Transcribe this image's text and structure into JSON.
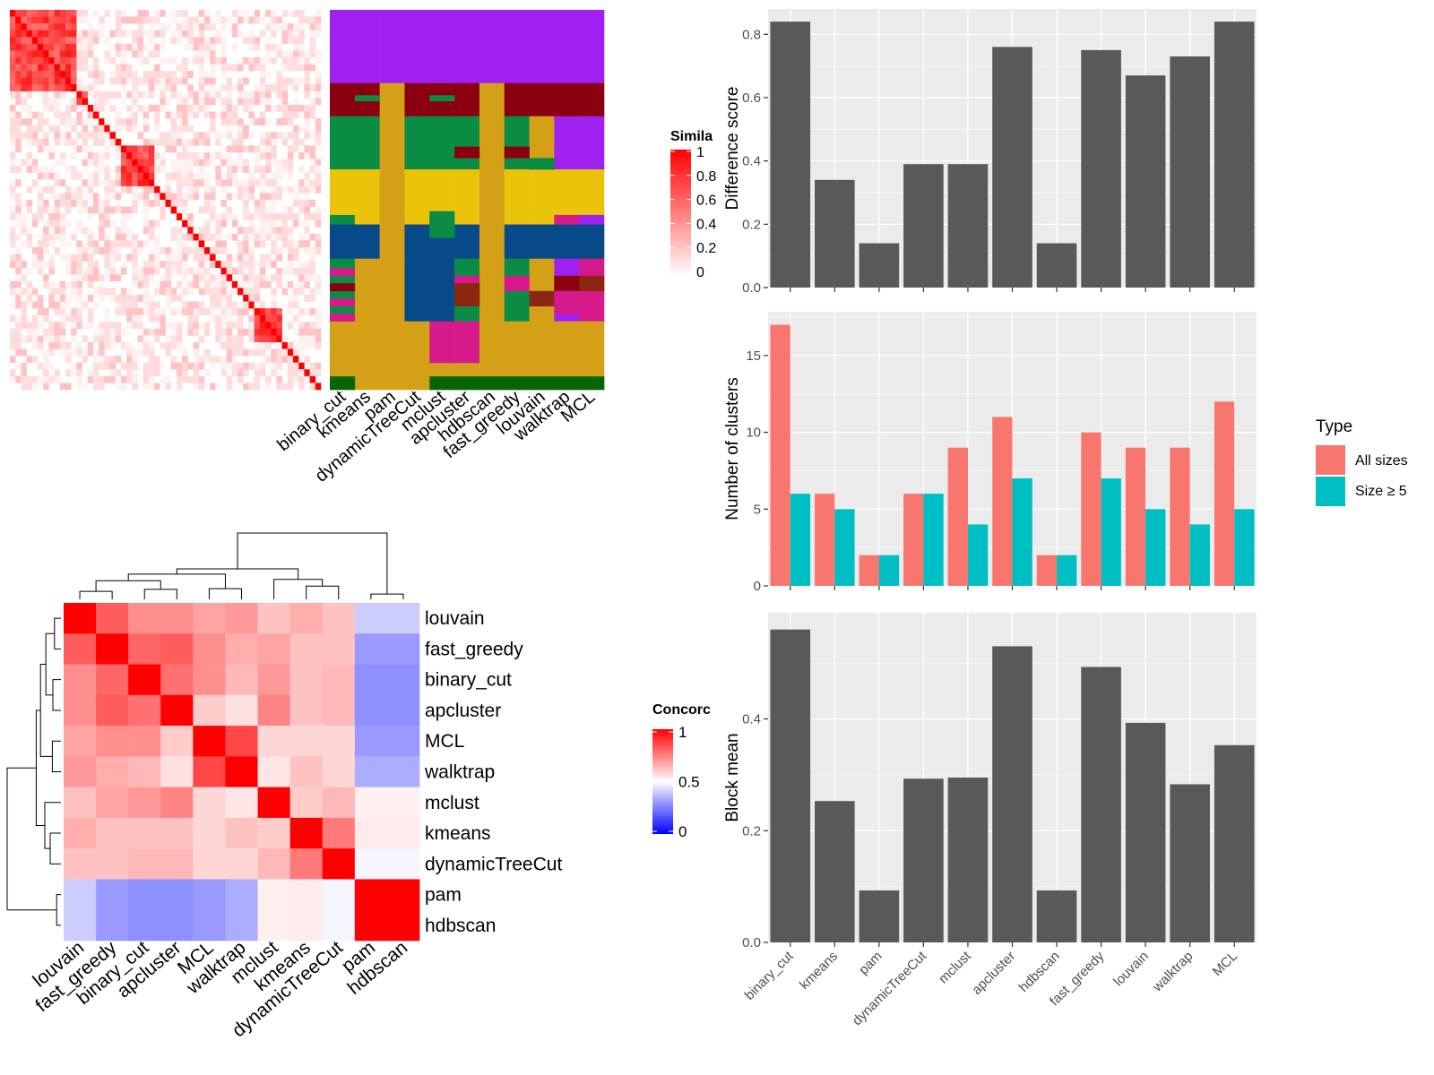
{
  "methods": [
    "binary_cut",
    "kmeans",
    "pam",
    "dynamicTreeCut",
    "mclust",
    "apcluster",
    "hdbscan",
    "fast_greedy",
    "louvain",
    "walktrap",
    "MCL"
  ],
  "colors": {
    "panel_bg": "#EBEBEB",
    "grid": "#FFFFFF",
    "bar": "#595959",
    "all_sizes": "#F8766D",
    "size_ge5": "#00BFC4",
    "sim_high": "#FF0000",
    "sim_low": "#FFFFFF",
    "conc_high": "#FF0000",
    "conc_mid": "#FFFFFF",
    "conc_low": "#0000FF"
  },
  "similarity_legend": {
    "title": "Simila",
    "ticks": [
      "1",
      "0.8",
      "0.6",
      "0.4",
      "0.2",
      "0"
    ]
  },
  "concordance_legend": {
    "title": "Concorc",
    "ticks": [
      "1",
      "0.5",
      "0"
    ]
  },
  "class_columns": [
    "binary_cut",
    "kmeans",
    "pam",
    "dynamicTreeCut",
    "mclust",
    "apcluster",
    "hdbscan",
    "fast_greedy",
    "louvain",
    "walktrap",
    "MCL"
  ],
  "class_palette": [
    "#A020F0",
    "#8B0010",
    "#0B8C45",
    "#EBC30B",
    "#064A8A",
    "#D4A017",
    "#D61A8C",
    "#8B2610",
    "#066606"
  ],
  "concordance_order": [
    "louvain",
    "fast_greedy",
    "binary_cut",
    "apcluster",
    "MCL",
    "walktrap",
    "mclust",
    "kmeans",
    "dynamicTreeCut",
    "pam",
    "hdbscan"
  ],
  "concordance_matrix": [
    [
      1.0,
      0.82,
      0.72,
      0.72,
      0.68,
      0.7,
      0.62,
      0.66,
      0.62,
      0.4,
      0.4
    ],
    [
      0.82,
      1.0,
      0.8,
      0.82,
      0.72,
      0.66,
      0.68,
      0.62,
      0.62,
      0.3,
      0.3
    ],
    [
      0.72,
      0.8,
      1.0,
      0.78,
      0.72,
      0.64,
      0.7,
      0.62,
      0.64,
      0.28,
      0.28
    ],
    [
      0.72,
      0.82,
      0.78,
      1.0,
      0.6,
      0.56,
      0.74,
      0.62,
      0.64,
      0.28,
      0.28
    ],
    [
      0.68,
      0.72,
      0.72,
      0.6,
      1.0,
      0.86,
      0.58,
      0.58,
      0.58,
      0.3,
      0.3
    ],
    [
      0.7,
      0.66,
      0.64,
      0.56,
      0.86,
      1.0,
      0.55,
      0.62,
      0.58,
      0.34,
      0.34
    ],
    [
      0.62,
      0.68,
      0.7,
      0.74,
      0.58,
      0.55,
      1.0,
      0.6,
      0.64,
      0.53,
      0.53
    ],
    [
      0.66,
      0.62,
      0.62,
      0.62,
      0.58,
      0.62,
      0.6,
      1.0,
      0.76,
      0.54,
      0.54
    ],
    [
      0.62,
      0.62,
      0.64,
      0.64,
      0.58,
      0.58,
      0.64,
      0.76,
      1.0,
      0.48,
      0.48
    ],
    [
      0.4,
      0.3,
      0.28,
      0.28,
      0.3,
      0.34,
      0.53,
      0.54,
      0.48,
      1.0,
      1.0
    ],
    [
      0.4,
      0.3,
      0.28,
      0.28,
      0.3,
      0.34,
      0.53,
      0.54,
      0.48,
      1.0,
      1.0
    ]
  ],
  "chart_data": [
    {
      "type": "bar",
      "categories": [
        "binary_cut",
        "kmeans",
        "pam",
        "dynamicTreeCut",
        "mclust",
        "apcluster",
        "hdbscan",
        "fast_greedy",
        "louvain",
        "walktrap",
        "MCL"
      ],
      "values": [
        0.84,
        0.34,
        0.14,
        0.39,
        0.39,
        0.76,
        0.14,
        0.75,
        0.67,
        0.73,
        0.84
      ],
      "ylabel": "Difference score",
      "ylim": [
        0,
        0.88
      ],
      "yticks": [
        "0.0",
        "0.2",
        "0.4",
        "0.6",
        "0.8"
      ],
      "grid": true
    },
    {
      "type": "bar",
      "categories": [
        "binary_cut",
        "kmeans",
        "pam",
        "dynamicTreeCut",
        "mclust",
        "apcluster",
        "hdbscan",
        "fast_greedy",
        "louvain",
        "walktrap",
        "MCL"
      ],
      "series": [
        {
          "name": "All sizes",
          "values": [
            17,
            6,
            2,
            6,
            9,
            11,
            2,
            10,
            9,
            9,
            12
          ]
        },
        {
          "name": "Size ≥ 5",
          "values": [
            6,
            5,
            2,
            6,
            4,
            7,
            2,
            7,
            5,
            4,
            5
          ]
        }
      ],
      "ylabel": "Number of clusters",
      "ylim": [
        0,
        17.85
      ],
      "yticks": [
        "0",
        "5",
        "10",
        "15"
      ],
      "legend": {
        "title": "Type",
        "position": "right"
      },
      "grid": true
    },
    {
      "type": "bar",
      "categories": [
        "binary_cut",
        "kmeans",
        "pam",
        "dynamicTreeCut",
        "mclust",
        "apcluster",
        "hdbscan",
        "fast_greedy",
        "louvain",
        "walktrap",
        "MCL"
      ],
      "values": [
        0.56,
        0.253,
        0.093,
        0.293,
        0.295,
        0.53,
        0.093,
        0.493,
        0.393,
        0.283,
        0.353
      ],
      "ylabel": "Block mean",
      "ylim": [
        0,
        0.59
      ],
      "yticks": [
        "0.0",
        "0.2",
        "0.4"
      ],
      "grid": true
    }
  ]
}
